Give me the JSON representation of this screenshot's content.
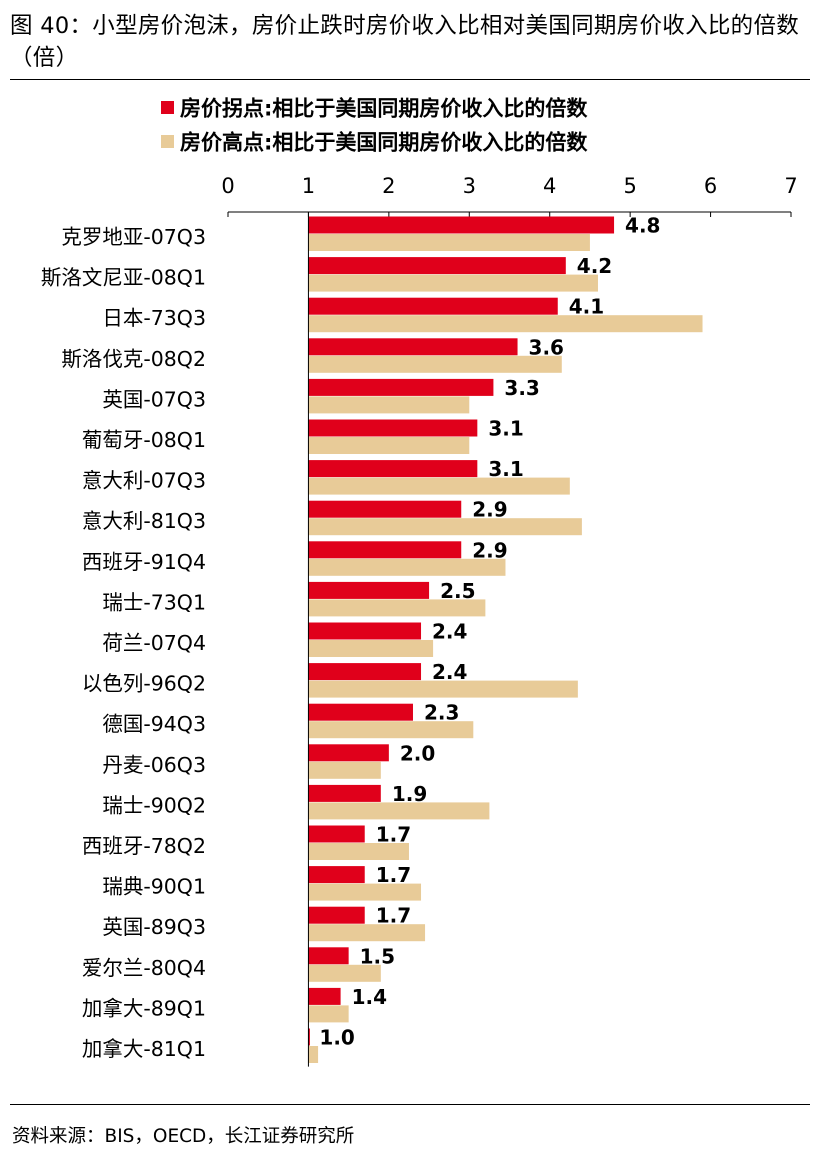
{
  "figure": {
    "title": "图 40：小型房价泡沫，房价止跌时房价收入比相对美国同期房价收入比的倍数（倍）",
    "source": "资料来源：BIS，OECD，长江证券研究所"
  },
  "chart_data": {
    "type": "bar",
    "orientation": "horizontal",
    "title": "",
    "xlabel": "",
    "ylabel": "",
    "xlim": [
      0,
      7
    ],
    "xticks": [
      "0",
      "1",
      "2",
      "3",
      "4",
      "5",
      "6",
      "7"
    ],
    "baseline": 1,
    "grid": false,
    "legend_position": "top",
    "categories": [
      "克罗地亚-07Q3",
      "斯洛文尼亚-08Q1",
      "日本-73Q3",
      "斯洛伐克-08Q2",
      "英国-07Q3",
      "葡萄牙-08Q1",
      "意大利-07Q3",
      "意大利-81Q3",
      "西班牙-91Q4",
      "瑞士-73Q1",
      "荷兰-07Q4",
      "以色列-96Q2",
      "德国-94Q3",
      "丹麦-06Q3",
      "瑞士-90Q2",
      "西班牙-78Q2",
      "瑞典-90Q1",
      "英国-89Q3",
      "爱尔兰-80Q4",
      "加拿大-89Q1",
      "加拿大-81Q1"
    ],
    "series": [
      {
        "name": "房价拐点:相比于美国同期房价收入比的倍数",
        "color": "#E0001B",
        "values": [
          4.8,
          4.2,
          4.1,
          3.6,
          3.3,
          3.1,
          3.1,
          2.9,
          2.9,
          2.5,
          2.4,
          2.4,
          2.3,
          2.0,
          1.9,
          1.7,
          1.7,
          1.7,
          1.5,
          1.4,
          1.0
        ],
        "labels": [
          "4.8",
          "4.2",
          "4.1",
          "3.6",
          "3.3",
          "3.1",
          "3.1",
          "2.9",
          "2.9",
          "2.5",
          "2.4",
          "2.4",
          "2.3",
          "2.0",
          "1.9",
          "1.7",
          "1.7",
          "1.7",
          "1.5",
          "1.4",
          "1.0"
        ]
      },
      {
        "name": "房价高点:相比于美国同期房价收入比的倍数",
        "color": "#E8CB98",
        "values": [
          4.5,
          4.6,
          5.9,
          4.15,
          3.0,
          3.0,
          4.25,
          4.4,
          3.45,
          3.2,
          2.55,
          4.35,
          3.05,
          1.9,
          3.25,
          2.25,
          2.4,
          2.45,
          1.9,
          1.5,
          1.12
        ]
      }
    ]
  }
}
